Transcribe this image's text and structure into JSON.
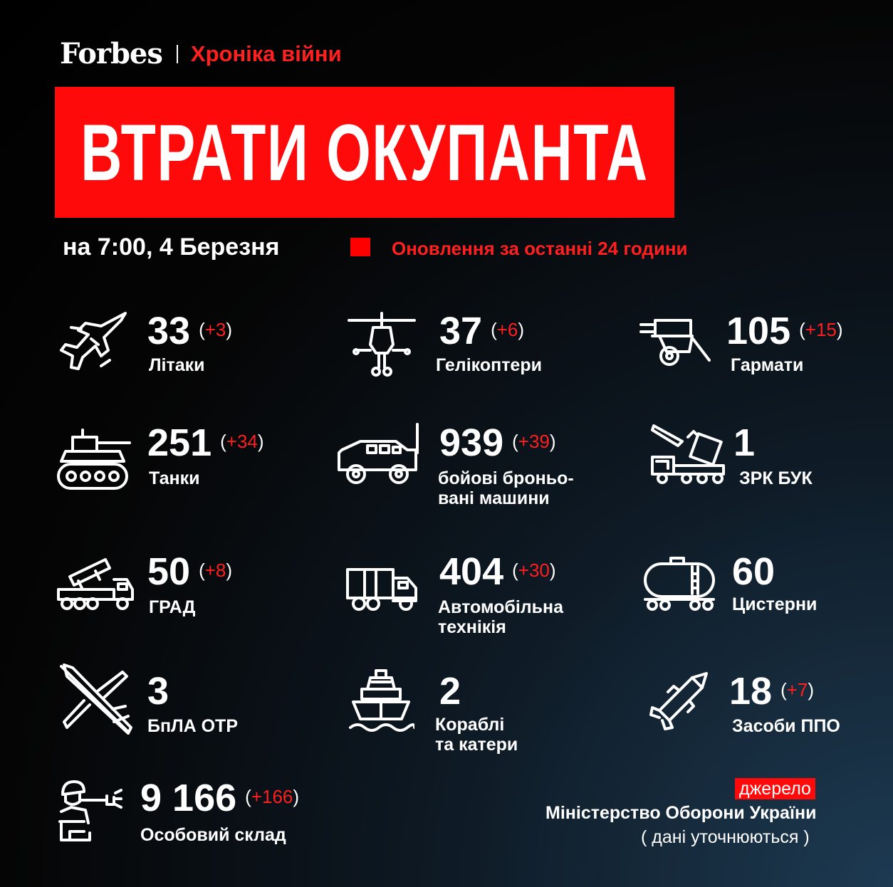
{
  "header": {
    "brand": "Forbes",
    "section": "Хроніка війни",
    "title": "ВТРАТИ ОКУПАНТА"
  },
  "date_label": "на 7:00, 4 Березня",
  "legend": {
    "text": "Оновлення за останні 24 години",
    "color": "#ff0000"
  },
  "colors": {
    "accent": "#ff0a0a",
    "background": "#050505",
    "text": "#ffffff"
  },
  "items": [
    {
      "icon": "jet-icon",
      "value": "33",
      "delta": "+3",
      "label1": "Літаки",
      "label2": ""
    },
    {
      "icon": "helicopter-icon",
      "value": "37",
      "delta": "+6",
      "label1": "Гелікоптери",
      "label2": ""
    },
    {
      "icon": "artillery-icon",
      "value": "105",
      "delta": "+15",
      "label1": "Гармати",
      "label2": ""
    },
    {
      "icon": "tank-icon",
      "value": "251",
      "delta": "+34",
      "label1": "Танки",
      "label2": ""
    },
    {
      "icon": "armored-vehicle-icon",
      "value": "939",
      "delta": "+39",
      "label1": "бойові броньо-",
      "label2": "вані машини"
    },
    {
      "icon": "missile-launcher-truck-icon",
      "value": "1",
      "delta": "",
      "label1": "ЗРК БУК",
      "label2": ""
    },
    {
      "icon": "rocket-launcher-icon",
      "value": "50",
      "delta": "+8",
      "label1": "ГРАД",
      "label2": ""
    },
    {
      "icon": "truck-icon",
      "value": "404",
      "delta": "+30",
      "label1": "Автомобільна",
      "label2": "технікія"
    },
    {
      "icon": "tanker-icon",
      "value": "60",
      "delta": "",
      "label1": "Цистерни",
      "label2": ""
    },
    {
      "icon": "drone-icon",
      "value": "3",
      "delta": "",
      "label1": "БпЛА ОТР",
      "label2": ""
    },
    {
      "icon": "ship-icon",
      "value": "2",
      "delta": "",
      "label1": "Кораблі",
      "label2": "та катери"
    },
    {
      "icon": "missile-icon",
      "value": "18",
      "delta": "+7",
      "label1": "Засоби ППО",
      "label2": ""
    },
    {
      "icon": "soldier-icon",
      "value": "9 166",
      "delta": "+166",
      "label1": "Особовий склад",
      "label2": ""
    }
  ],
  "source": {
    "tag": "джерело",
    "name": "Міністерство Оборони України",
    "note": "( дані уточнюються )"
  }
}
